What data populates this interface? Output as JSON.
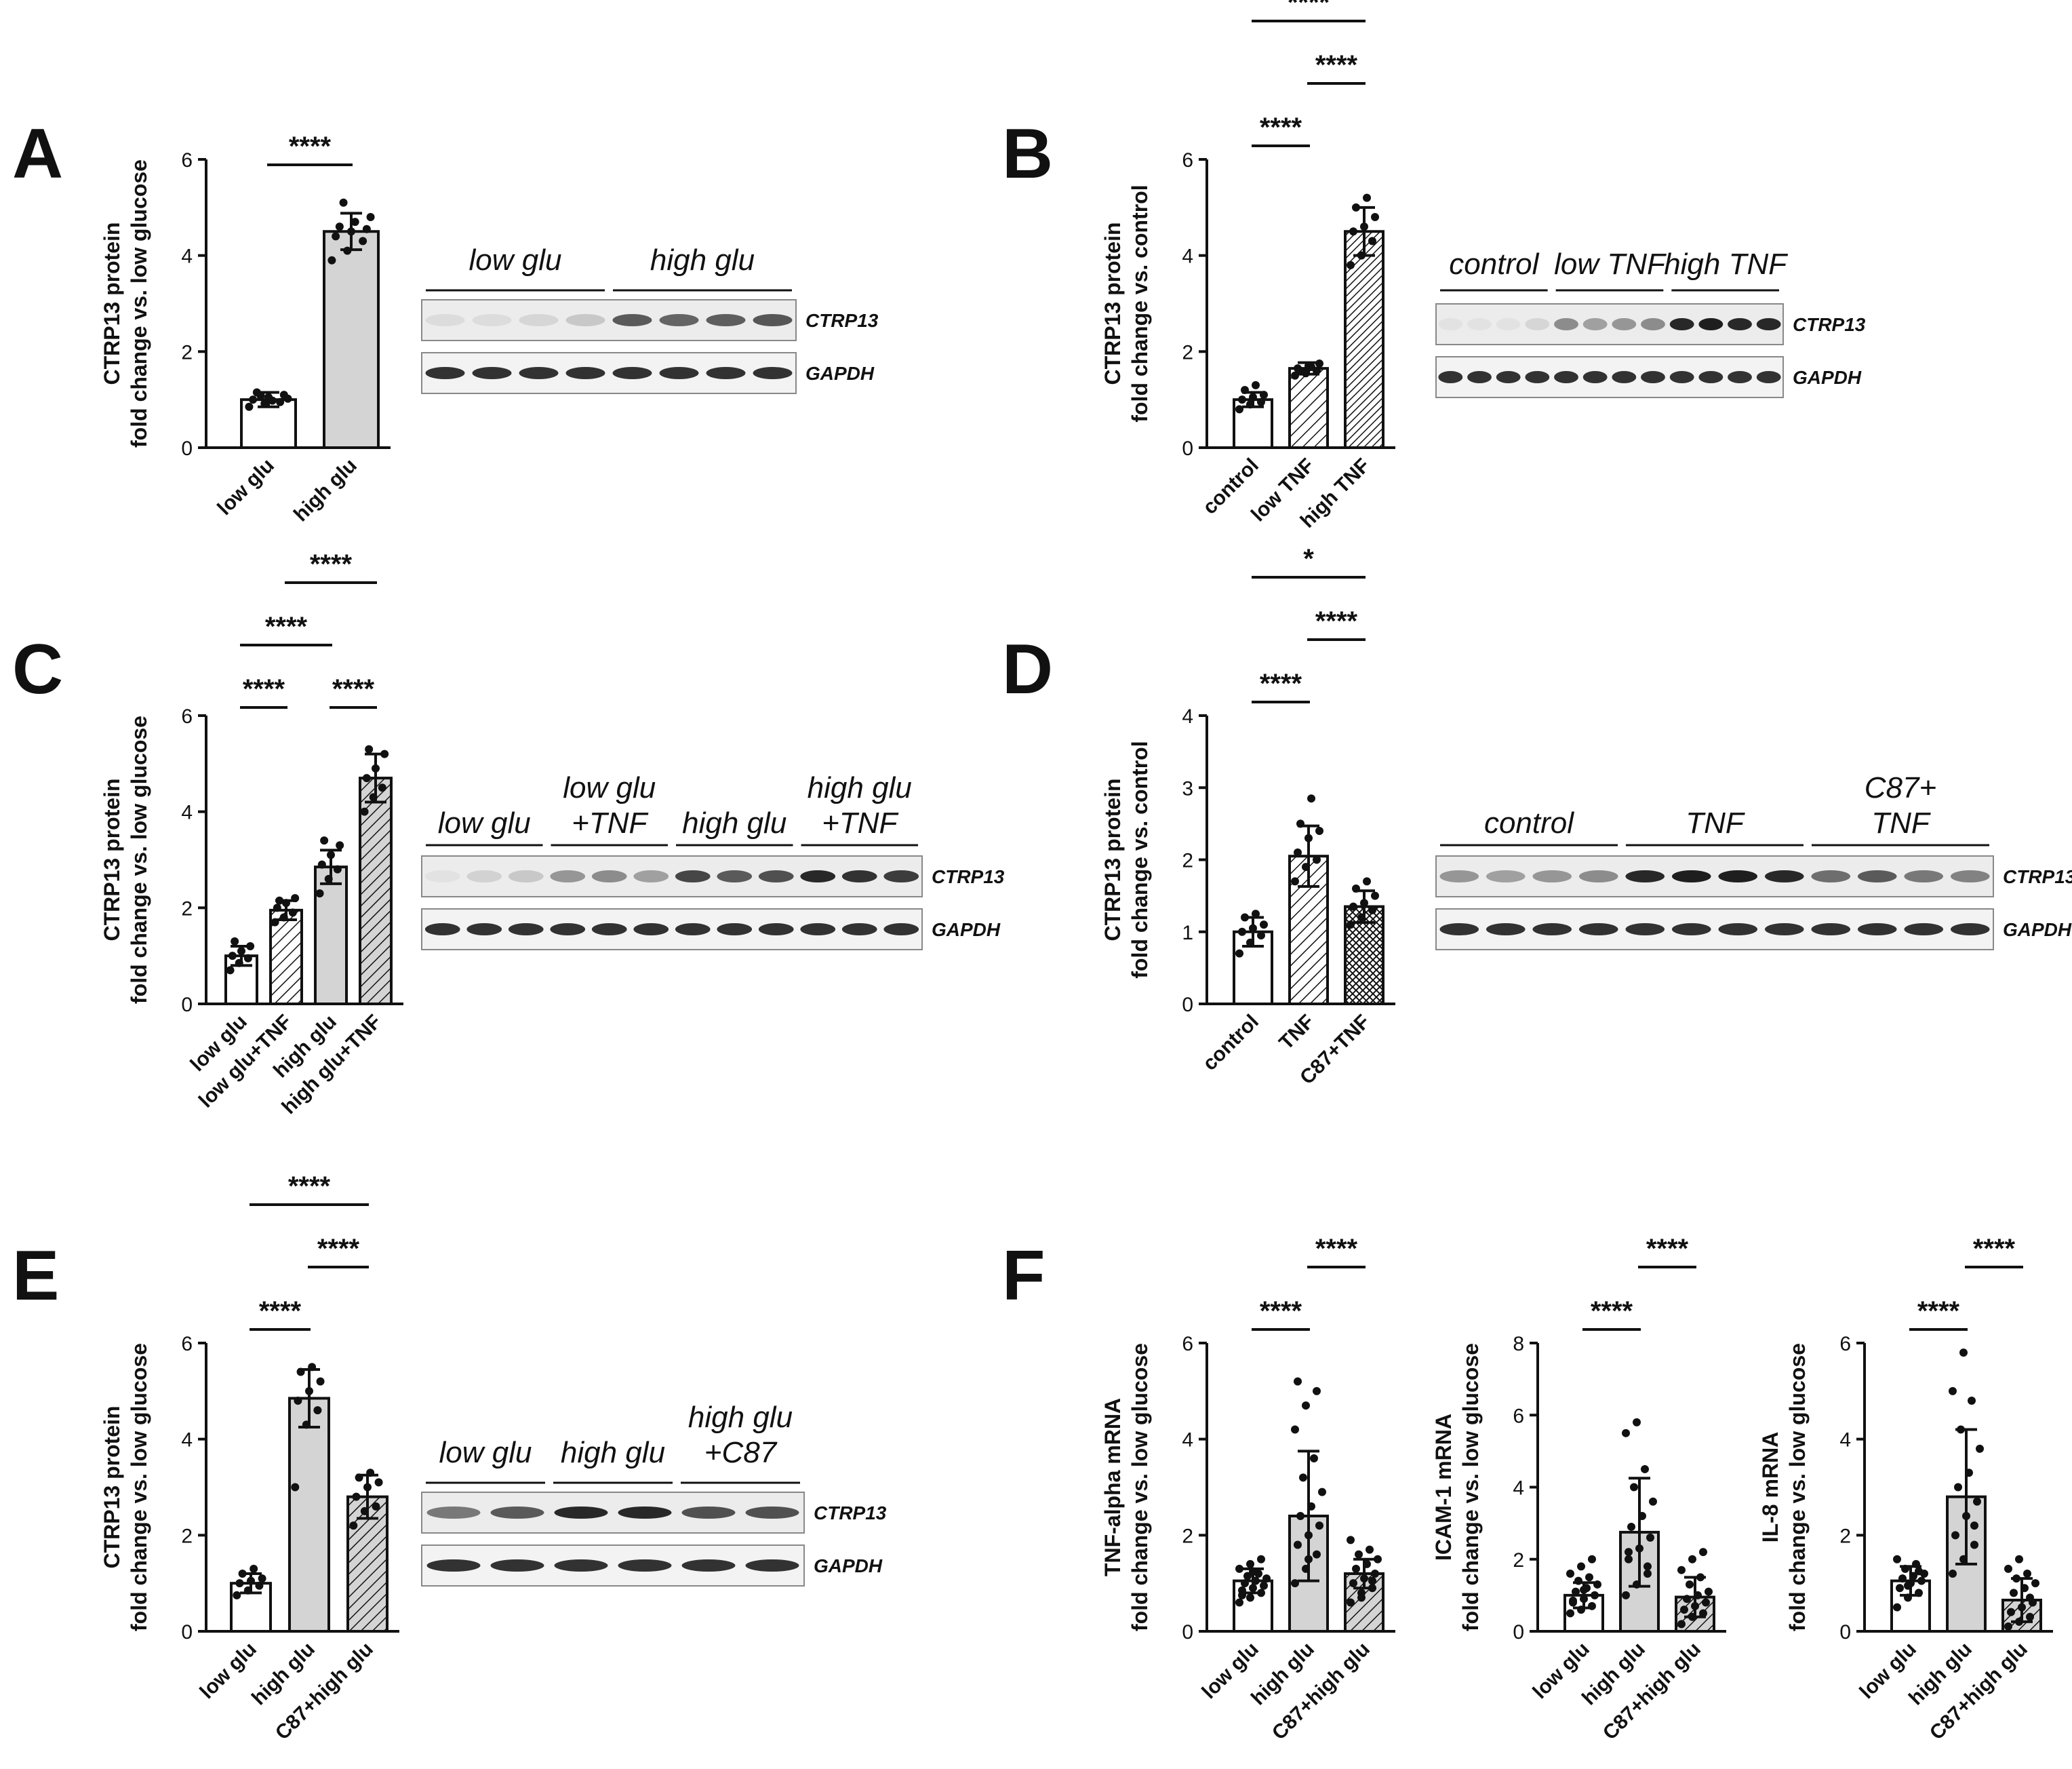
{
  "figure": {
    "panels": [
      {
        "letter": "A",
        "blot": {
          "labels": [
            {
              "text": [
                "low glu"
              ]
            },
            {
              "text": [
                "high glu"
              ]
            }
          ],
          "rows": [
            "CTRP13",
            "GAPDH"
          ]
        }
      },
      {
        "letter": "B",
        "blot": {
          "labels": [
            {
              "text": [
                "control"
              ]
            },
            {
              "text": [
                "low TNF"
              ]
            },
            {
              "text": [
                "high TNF"
              ]
            }
          ],
          "rows": [
            "CTRP13",
            "GAPDH"
          ]
        }
      },
      {
        "letter": "C",
        "blot": {
          "labels": [
            {
              "text": [
                "low glu"
              ]
            },
            {
              "text": [
                "low glu",
                "+TNF"
              ]
            },
            {
              "text": [
                "high glu"
              ]
            },
            {
              "text": [
                "high glu",
                "+TNF"
              ]
            }
          ],
          "rows": [
            "CTRP13",
            "GAPDH"
          ]
        }
      },
      {
        "letter": "D",
        "blot": {
          "labels": [
            {
              "text": [
                "control"
              ]
            },
            {
              "text": [
                "TNF"
              ]
            },
            {
              "text": [
                "C87+",
                "TNF"
              ]
            }
          ],
          "rows": [
            "CTRP13",
            "GAPDH"
          ]
        }
      },
      {
        "letter": "E",
        "blot": {
          "labels": [
            {
              "text": [
                "low glu"
              ]
            },
            {
              "text": [
                "high glu"
              ]
            },
            {
              "text": [
                "high glu",
                "+C87"
              ]
            }
          ],
          "rows": [
            "CTRP13",
            "GAPDH"
          ]
        }
      },
      {
        "letter": "F",
        "blot": null
      }
    ]
  },
  "chart_data": [
    {
      "panel": "A",
      "type": "bar",
      "ylabel": [
        "CTRP13 protein",
        "fold change vs. low glucose"
      ],
      "ylim": [
        0,
        6
      ],
      "yticks": [
        0,
        2,
        4,
        6
      ],
      "categories": [
        "low glu",
        "high glu"
      ],
      "values": [
        1.0,
        4.5
      ],
      "errors": [
        0.15,
        0.38
      ],
      "fills": [
        "open",
        "gray"
      ],
      "points": [
        [
          0.85,
          0.92,
          0.95,
          1.0,
          1.05,
          1.1,
          1.15,
          0.98,
          1.02,
          1.08
        ],
        [
          3.9,
          4.1,
          4.3,
          4.4,
          4.5,
          4.55,
          4.6,
          4.7,
          4.8,
          5.1
        ]
      ],
      "significance": [
        {
          "from": 0,
          "to": 1,
          "label": "****"
        }
      ]
    },
    {
      "panel": "B",
      "type": "bar",
      "ylabel": [
        "CTRP13 protein",
        "fold change vs. control"
      ],
      "ylim": [
        0,
        6
      ],
      "yticks": [
        0,
        2,
        4,
        6
      ],
      "categories": [
        "control",
        "low TNF",
        "high TNF"
      ],
      "values": [
        1.0,
        1.65,
        4.5
      ],
      "errors": [
        0.15,
        0.12,
        0.5
      ],
      "fills": [
        "open",
        "hatch",
        "hatch-dense"
      ],
      "points": [
        [
          0.8,
          0.9,
          0.95,
          1.0,
          1.05,
          1.1,
          1.2,
          1.3
        ],
        [
          1.5,
          1.55,
          1.6,
          1.65,
          1.7,
          1.75,
          1.6,
          1.68
        ],
        [
          3.8,
          4.0,
          4.3,
          4.5,
          4.6,
          4.8,
          5.0,
          5.2
        ]
      ],
      "significance": [
        {
          "from": 0,
          "to": 1,
          "label": "****"
        },
        {
          "from": 1,
          "to": 2,
          "label": "****"
        },
        {
          "from": 0,
          "to": 2,
          "label": "****"
        }
      ]
    },
    {
      "panel": "C",
      "type": "bar",
      "ylabel": [
        "CTRP13 protein",
        "fold change vs. low glucose"
      ],
      "ylim": [
        0,
        6
      ],
      "yticks": [
        0,
        2,
        4,
        6
      ],
      "categories": [
        "low glu",
        "low glu+TNF",
        "high glu",
        "high glu+TNF"
      ],
      "values": [
        1.0,
        1.95,
        2.85,
        4.7
      ],
      "errors": [
        0.2,
        0.2,
        0.35,
        0.5
      ],
      "fills": [
        "open",
        "hatch",
        "gray",
        "hatch-gray"
      ],
      "points": [
        [
          0.7,
          0.85,
          0.95,
          1.0,
          1.1,
          1.2,
          1.3
        ],
        [
          1.7,
          1.8,
          1.9,
          2.0,
          2.1,
          2.2,
          2.15
        ],
        [
          2.3,
          2.6,
          2.8,
          2.9,
          3.1,
          3.3,
          3.4
        ],
        [
          4.0,
          4.3,
          4.5,
          4.7,
          4.9,
          5.2,
          5.3
        ]
      ],
      "significance": [
        {
          "from": 0,
          "to": 1,
          "label": "****"
        },
        {
          "from": 2,
          "to": 3,
          "label": "****"
        },
        {
          "from": 0,
          "to": 2,
          "label": "****"
        },
        {
          "from": 1,
          "to": 3,
          "label": "****"
        }
      ]
    },
    {
      "panel": "D",
      "type": "bar",
      "ylabel": [
        "CTRP13 protein",
        "fold change vs. control"
      ],
      "ylim": [
        0,
        4
      ],
      "yticks": [
        0,
        1,
        2,
        3,
        4
      ],
      "categories": [
        "control",
        "TNF",
        "C87+TNF"
      ],
      "values": [
        1.0,
        2.05,
        1.35
      ],
      "errors": [
        0.2,
        0.42,
        0.22
      ],
      "fills": [
        "open",
        "hatch",
        "crosshatch"
      ],
      "points": [
        [
          0.7,
          0.85,
          0.95,
          1.0,
          1.05,
          1.1,
          1.2,
          1.25
        ],
        [
          1.7,
          1.9,
          2.0,
          2.1,
          2.3,
          2.4,
          2.5,
          2.85
        ],
        [
          1.1,
          1.2,
          1.3,
          1.35,
          1.4,
          1.5,
          1.6,
          1.7
        ]
      ],
      "significance": [
        {
          "from": 0,
          "to": 1,
          "label": "****"
        },
        {
          "from": 1,
          "to": 2,
          "label": "****"
        },
        {
          "from": 0,
          "to": 2,
          "label": "*"
        }
      ]
    },
    {
      "panel": "E",
      "type": "bar",
      "ylabel": [
        "CTRP13 protein",
        "fold change vs. low glucose"
      ],
      "ylim": [
        0,
        6
      ],
      "yticks": [
        0,
        2,
        4,
        6
      ],
      "categories": [
        "low glu",
        "high glu",
        "C87+high glu"
      ],
      "values": [
        1.0,
        4.85,
        2.8
      ],
      "errors": [
        0.2,
        0.6,
        0.45
      ],
      "fills": [
        "open",
        "gray",
        "hatch-gray"
      ],
      "points": [
        [
          0.75,
          0.85,
          0.95,
          1.0,
          1.05,
          1.1,
          1.2,
          1.3
        ],
        [
          3.0,
          4.3,
          4.6,
          4.8,
          5.0,
          5.2,
          5.4,
          5.5
        ],
        [
          2.2,
          2.5,
          2.6,
          2.8,
          3.0,
          3.1,
          3.2,
          3.3
        ]
      ],
      "significance": [
        {
          "from": 0,
          "to": 1,
          "label": "****"
        },
        {
          "from": 1,
          "to": 2,
          "label": "****"
        },
        {
          "from": 0,
          "to": 2,
          "label": "****"
        }
      ]
    },
    {
      "panel": "F",
      "type": "bar",
      "ylabel": [
        "TNF-alpha mRNA",
        "fold change vs. low glucose"
      ],
      "ylim": [
        0,
        6
      ],
      "yticks": [
        0,
        2,
        4,
        6
      ],
      "categories": [
        "low glu",
        "high glu",
        "C87+high glu"
      ],
      "values": [
        1.05,
        2.4,
        1.2
      ],
      "errors": [
        0.25,
        1.35,
        0.3
      ],
      "fills": [
        "open",
        "gray",
        "hatch-gray"
      ],
      "points": [
        [
          0.6,
          0.7,
          0.8,
          0.85,
          0.9,
          0.95,
          1.0,
          1.05,
          1.1,
          1.15,
          1.2,
          1.3,
          1.4,
          1.5,
          0.75,
          1.25
        ],
        [
          1.0,
          1.3,
          1.6,
          1.8,
          2.0,
          2.2,
          2.4,
          2.6,
          2.9,
          3.2,
          3.6,
          4.2,
          4.7,
          5.0,
          5.2,
          1.5
        ],
        [
          0.6,
          0.8,
          0.9,
          1.0,
          1.1,
          1.2,
          1.3,
          1.4,
          1.5,
          1.6,
          1.7,
          1.9,
          0.7,
          1.05
        ]
      ],
      "significance": [
        {
          "from": 0,
          "to": 1,
          "label": "****"
        },
        {
          "from": 1,
          "to": 2,
          "label": "****"
        }
      ]
    },
    {
      "panel": "F",
      "type": "bar",
      "ylabel": [
        "ICAM-1 mRNA",
        "fold change vs. low glucose"
      ],
      "ylim": [
        0,
        8
      ],
      "yticks": [
        0,
        2,
        4,
        6,
        8
      ],
      "categories": [
        "low glu",
        "high glu",
        "C87+high glu"
      ],
      "values": [
        1.0,
        2.75,
        0.95
      ],
      "errors": [
        0.35,
        1.5,
        0.55
      ],
      "fills": [
        "open",
        "gray",
        "hatch-gray"
      ],
      "points": [
        [
          0.5,
          0.6,
          0.7,
          0.8,
          0.9,
          1.0,
          1.1,
          1.2,
          1.3,
          1.4,
          1.5,
          1.6,
          1.8,
          2.0,
          0.85,
          1.15
        ],
        [
          1.0,
          1.3,
          1.6,
          2.0,
          2.3,
          2.6,
          2.9,
          3.2,
          3.6,
          4.0,
          4.5,
          5.5,
          5.8,
          1.8,
          2.2
        ],
        [
          0.2,
          0.4,
          0.5,
          0.6,
          0.7,
          0.8,
          0.9,
          1.0,
          1.1,
          1.3,
          1.5,
          1.7,
          2.0,
          2.2
        ]
      ],
      "significance": [
        {
          "from": 0,
          "to": 1,
          "label": "****"
        },
        {
          "from": 1,
          "to": 2,
          "label": "****"
        }
      ]
    },
    {
      "panel": "F",
      "type": "bar",
      "ylabel": [
        "IL-8 mRNA",
        "fold change vs. low glucose"
      ],
      "ylim": [
        0,
        6
      ],
      "yticks": [
        0,
        2,
        4,
        6
      ],
      "categories": [
        "low glu",
        "high glu",
        "C87+high glu"
      ],
      "values": [
        1.05,
        2.8,
        0.65
      ],
      "errors": [
        0.3,
        1.4,
        0.45
      ],
      "fills": [
        "open",
        "gray",
        "hatch-gray"
      ],
      "points": [
        [
          0.5,
          0.7,
          0.8,
          0.9,
          1.0,
          1.05,
          1.1,
          1.15,
          1.2,
          1.3,
          1.4,
          1.5,
          0.95,
          1.25
        ],
        [
          1.2,
          1.5,
          1.8,
          2.0,
          2.4,
          2.7,
          3.0,
          3.3,
          3.8,
          4.2,
          4.8,
          5.0,
          5.8,
          2.2
        ],
        [
          0.1,
          0.2,
          0.3,
          0.4,
          0.5,
          0.6,
          0.8,
          0.9,
          1.0,
          1.1,
          1.2,
          1.3,
          1.5,
          0.7
        ]
      ],
      "significance": [
        {
          "from": 0,
          "to": 1,
          "label": "****"
        },
        {
          "from": 1,
          "to": 2,
          "label": "****"
        }
      ]
    }
  ]
}
